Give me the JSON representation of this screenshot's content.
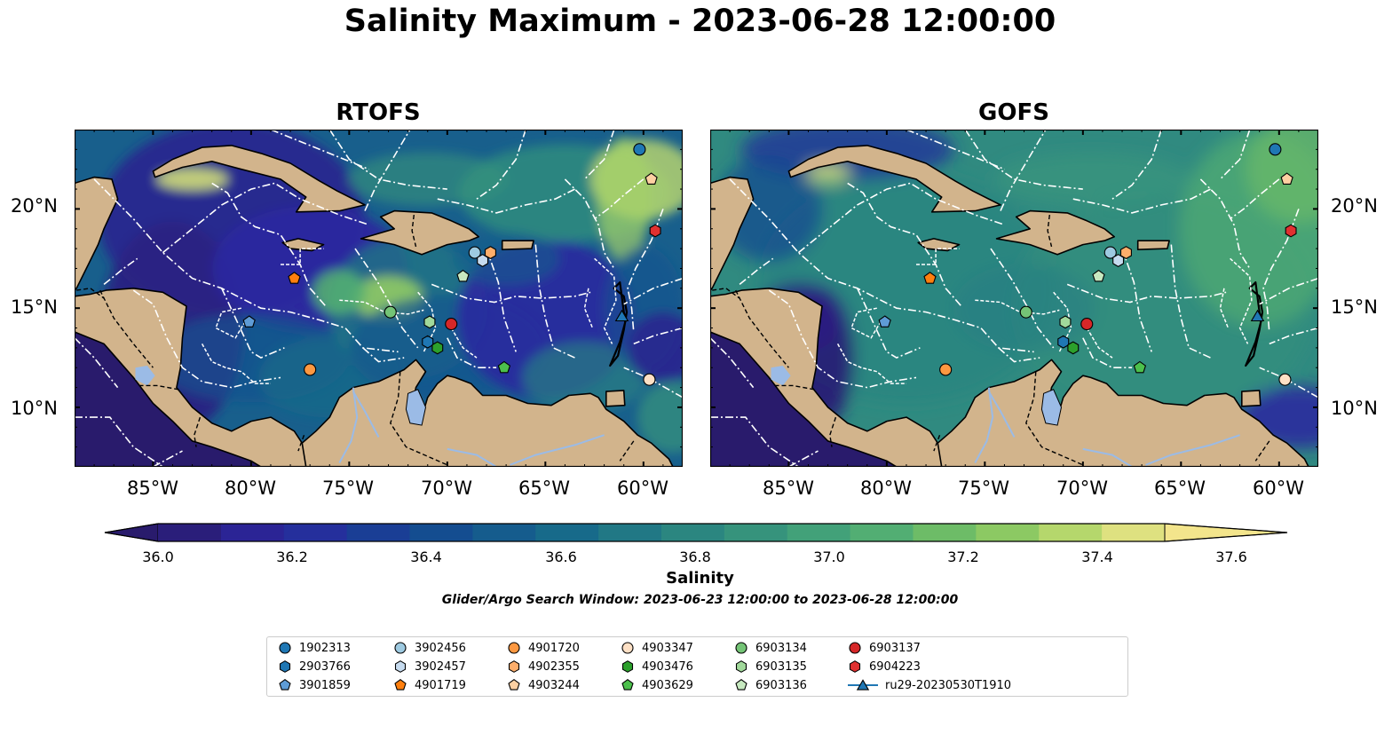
{
  "title": "Salinity Maximum - 2023-06-28 12:00:00",
  "panels": [
    {
      "title": "RTOFS",
      "y_ticks": [
        "20°N",
        "15°N",
        "10°N"
      ],
      "x_ticks": [
        "85°W",
        "80°W",
        "75°W",
        "70°W",
        "65°W",
        "60°W"
      ]
    },
    {
      "title": "GOFS",
      "y_ticks": [
        "20°N",
        "15°N",
        "10°N"
      ],
      "x_ticks": [
        "85°W",
        "80°W",
        "75°W",
        "70°W",
        "65°W",
        "60°W"
      ]
    }
  ],
  "map_extent": {
    "lon": [
      -89,
      -58
    ],
    "lat": [
      7,
      24
    ]
  },
  "colorbar": {
    "label": "Salinity",
    "ticks": [
      "36.0",
      "36.2",
      "36.4",
      "36.6",
      "36.8",
      "37.0",
      "37.2",
      "37.4",
      "37.6"
    ],
    "range": [
      36.0,
      37.6
    ],
    "step": 0.1,
    "colormap": "haline"
  },
  "search_window": "Glider/Argo Search Window: 2023-06-23 12:00:00 to 2023-06-28 12:00:00",
  "colors": {
    "land": "#d2b48c",
    "lakes_rivers": "#9bbbe6",
    "deep_low": "#291b6c",
    "high": "#f3e58c"
  },
  "platforms": [
    {
      "id": "1902313",
      "marker": "circle",
      "color": "#1f77b4",
      "lon": -60.2,
      "lat": 23.0
    },
    {
      "id": "2903766",
      "marker": "hexagon",
      "color": "#1f77b4",
      "lon": -71.0,
      "lat": 13.3
    },
    {
      "id": "3901859",
      "marker": "pentagon",
      "color": "#5e9cd6",
      "lon": -80.1,
      "lat": 14.3
    },
    {
      "id": "3902456",
      "marker": "circle",
      "color": "#9ecae1",
      "lon": -68.6,
      "lat": 17.8
    },
    {
      "id": "3902457",
      "marker": "hexagon",
      "color": "#c6dbef",
      "lon": -68.2,
      "lat": 17.4
    },
    {
      "id": "4901719",
      "marker": "pentagon",
      "color": "#ff7f0e",
      "lon": -77.8,
      "lat": 16.5
    },
    {
      "id": "4901720",
      "marker": "circle",
      "color": "#fd9841",
      "lon": -77.0,
      "lat": 11.9
    },
    {
      "id": "4902355",
      "marker": "hexagon",
      "color": "#fdae6b",
      "lon": -67.8,
      "lat": 17.8
    },
    {
      "id": "4903244",
      "marker": "pentagon",
      "color": "#fdd0a2",
      "lon": -59.6,
      "lat": 21.5
    },
    {
      "id": "4903347",
      "marker": "circle",
      "color": "#fde0c5",
      "lon": -59.7,
      "lat": 11.4
    },
    {
      "id": "4903476",
      "marker": "hexagon",
      "color": "#2ca02c",
      "lon": -70.5,
      "lat": 13.0
    },
    {
      "id": "4903629",
      "marker": "pentagon",
      "color": "#4cc04c",
      "lon": -67.1,
      "lat": 12.0
    },
    {
      "id": "6903134",
      "marker": "circle",
      "color": "#74c476",
      "lon": -72.9,
      "lat": 14.8
    },
    {
      "id": "6903135",
      "marker": "hexagon",
      "color": "#a1d99b",
      "lon": -70.9,
      "lat": 14.3
    },
    {
      "id": "6903136",
      "marker": "pentagon",
      "color": "#c7e9c0",
      "lon": -69.2,
      "lat": 16.6
    },
    {
      "id": "6903137",
      "marker": "circle",
      "color": "#d62728",
      "lon": -69.8,
      "lat": 14.2
    },
    {
      "id": "6904223",
      "marker": "hexagon",
      "color": "#e03030",
      "lon": -59.4,
      "lat": 18.9
    },
    {
      "id": "ru29-20230530T1910",
      "marker": "triangle",
      "color": "#1f77b4",
      "lon": -61.1,
      "lat": 14.6,
      "line": true
    }
  ]
}
